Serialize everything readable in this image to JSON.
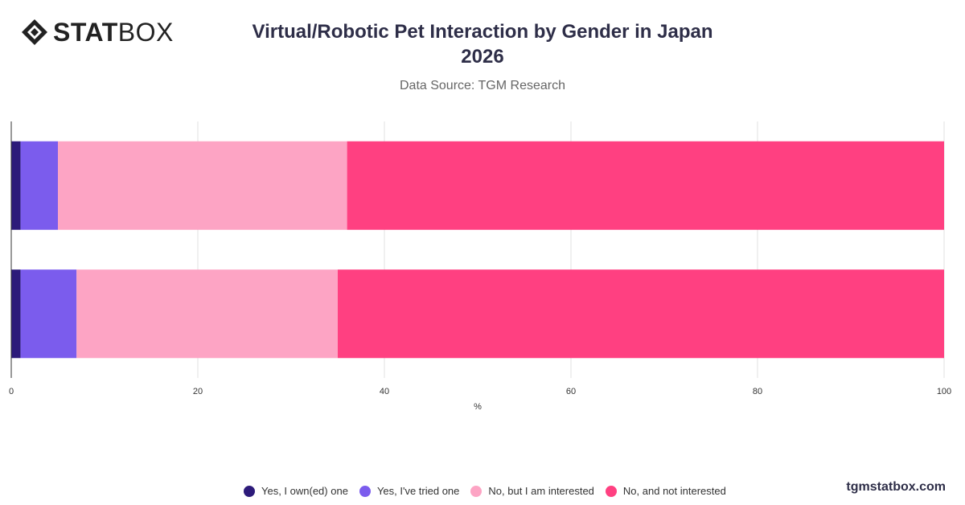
{
  "logo": {
    "text_bold": "STAT",
    "text_light": "BOX"
  },
  "header": {
    "title": "Virtual/Robotic Pet Interaction by Gender in Japan 2026",
    "subtitle": "Data Source: TGM Research"
  },
  "footer": {
    "brand": "tgmstatbox.com"
  },
  "chart_data": {
    "type": "bar",
    "orientation": "horizontal",
    "stacked": true,
    "title": "Virtual/Robotic Pet Interaction by Gender in Japan 2026",
    "subtitle": "Data Source: TGM Research",
    "xlabel": "%",
    "ylabel": "",
    "xlim": [
      0,
      100
    ],
    "x_ticks": [
      0,
      20,
      40,
      60,
      80,
      100
    ],
    "grid": true,
    "legend_position": "bottom",
    "categories": [
      "",
      ""
    ],
    "series": [
      {
        "name": "Yes, I own(ed) one",
        "color": "#2d1b7a",
        "values": [
          1,
          1
        ]
      },
      {
        "name": "Yes, I've tried one",
        "color": "#7b5ced",
        "values": [
          4,
          6
        ]
      },
      {
        "name": "No, but I am interested",
        "color": "#fda4c4",
        "values": [
          31,
          28
        ]
      },
      {
        "name": "No, and not interested",
        "color": "#ff4081",
        "values": [
          64,
          65
        ]
      }
    ]
  }
}
